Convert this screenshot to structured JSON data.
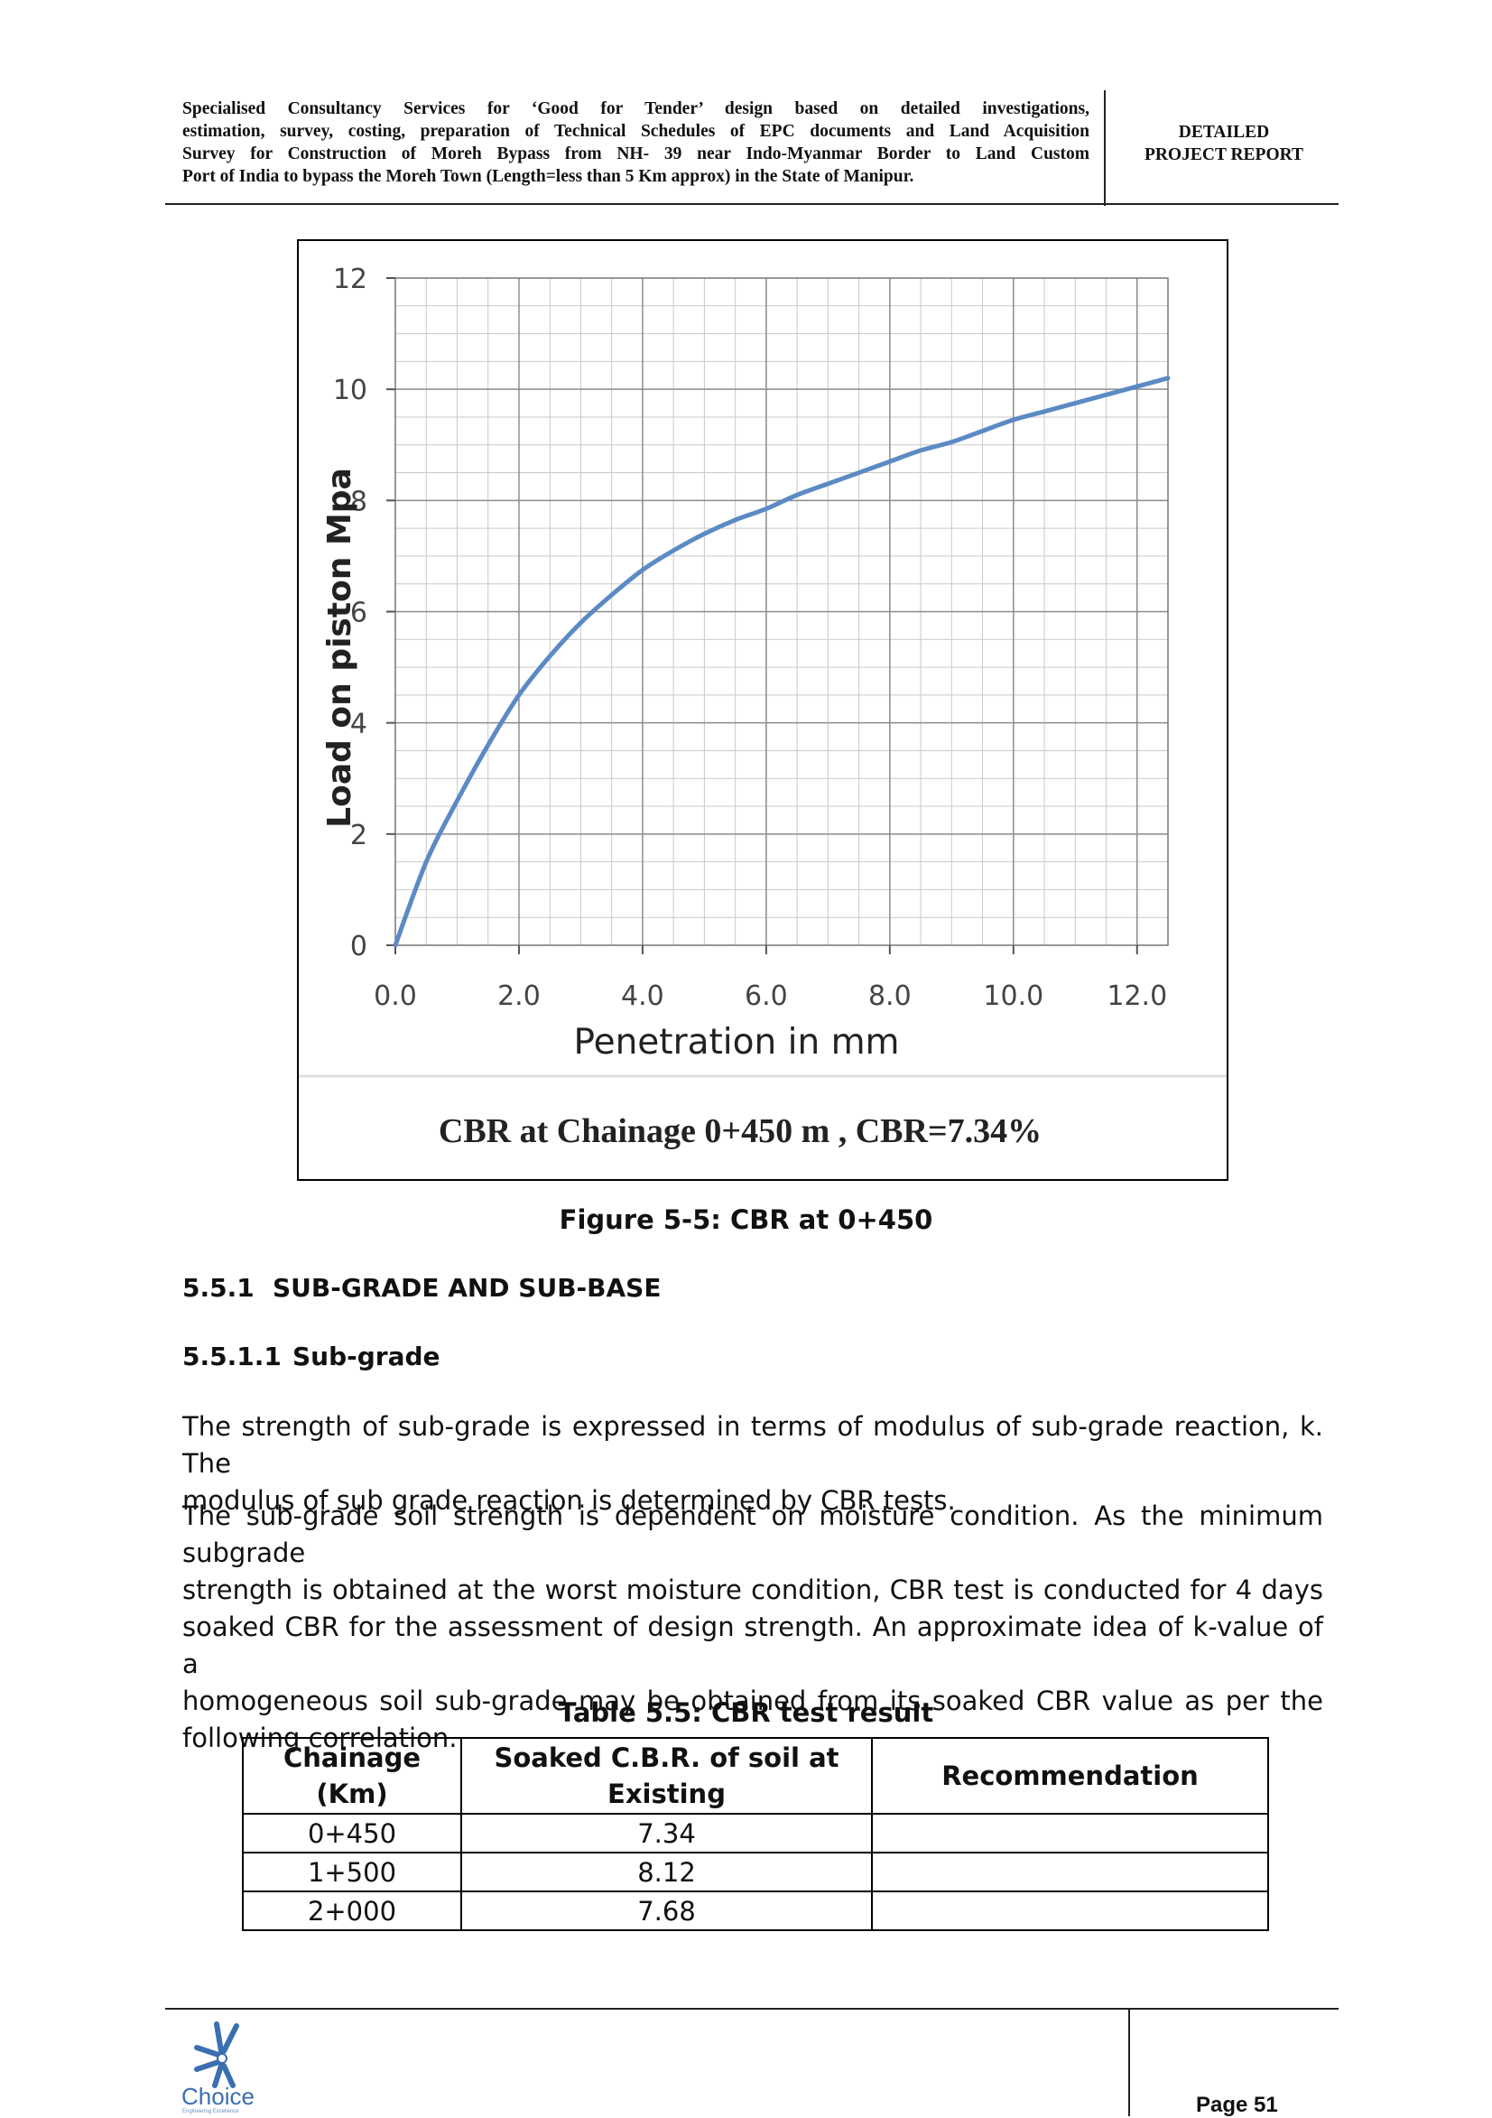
{
  "header": {
    "left_lines": [
      "Specialised Consultancy Services for ‘Good for Tender’ design based on detailed investigations,",
      "estimation, survey, costing, preparation of Technical Schedules of EPC documents and Land Acquisition",
      "Survey for Construction of Moreh Bypass from NH- 39 near Indo-Myanmar Border to Land Custom",
      "Port of India to bypass the Moreh Town (Length=less than 5 Km approx) in the State of Manipur."
    ],
    "right_lines": [
      "DETAILED",
      "PROJECT REPORT"
    ]
  },
  "figure": {
    "chart_note": "CBR at Chainage 0+450 m , CBR=7.34%",
    "caption": "Figure 5-5: CBR at 0+450"
  },
  "chart_data": {
    "type": "line",
    "title": "",
    "xlabel": "Penetration in mm",
    "ylabel": "Load on piston Mpa",
    "xlim": [
      0,
      12.5
    ],
    "ylim": [
      0,
      12
    ],
    "x_ticks": [
      "0.0",
      "2.0",
      "4.0",
      "6.0",
      "8.0",
      "10.0",
      "12.0"
    ],
    "y_ticks": [
      "0",
      "2",
      "4",
      "6",
      "8",
      "10",
      "12"
    ],
    "grid": true,
    "line_color": "#5b8ac4",
    "series": [
      {
        "x": [
          0,
          0.5,
          1.0,
          1.5,
          2.0,
          2.5,
          3.0,
          3.5,
          4.0,
          4.5,
          5.0,
          5.5,
          6.0,
          6.5,
          7.0,
          7.5,
          8.0,
          8.5,
          9.0,
          9.5,
          10.0,
          10.5,
          11.0,
          11.5,
          12.0,
          12.5
        ],
        "y": [
          0,
          1.5,
          2.6,
          3.6,
          4.5,
          5.2,
          5.8,
          6.3,
          6.75,
          7.1,
          7.4,
          7.65,
          7.85,
          8.1,
          8.3,
          8.5,
          8.7,
          8.9,
          9.05,
          9.25,
          9.45,
          9.6,
          9.75,
          9.9,
          10.05,
          10.2
        ]
      }
    ]
  },
  "section": {
    "h1_num": "5.5.1",
    "h1_title": "SUB-GRADE AND SUB-BASE",
    "h2_num": "5.5.1.1",
    "h2_title": "Sub-grade",
    "p1_lines": [
      "The strength of sub-grade is expressed in terms of modulus of sub-grade reaction, k. The",
      "modulus of sub grade reaction is determined by CBR tests."
    ],
    "p2_lines": [
      "The sub-grade soil strength is dependent on moisture condition. As the minimum subgrade",
      "strength is obtained at the worst moisture condition, CBR test is conducted for 4 days",
      "soaked CBR for the assessment of design strength. An approximate idea of k-value of a",
      "homogeneous soil sub-grade may be obtained from its soaked CBR value as per the",
      "following correlation."
    ]
  },
  "table": {
    "caption": "Table 5.5: CBR test result",
    "headers": [
      "Chainage (Km)",
      "Soaked C.B.R. of soil at Existing",
      "Recommendation"
    ],
    "rows": [
      [
        "0+450",
        "7.34",
        ""
      ],
      [
        "1+500",
        "8.12",
        ""
      ],
      [
        "2+000",
        "7.68",
        ""
      ]
    ]
  },
  "footer": {
    "logo_text": "Choice",
    "logo_tagline": "Engineering Excellence",
    "page_label": "Page 51"
  }
}
